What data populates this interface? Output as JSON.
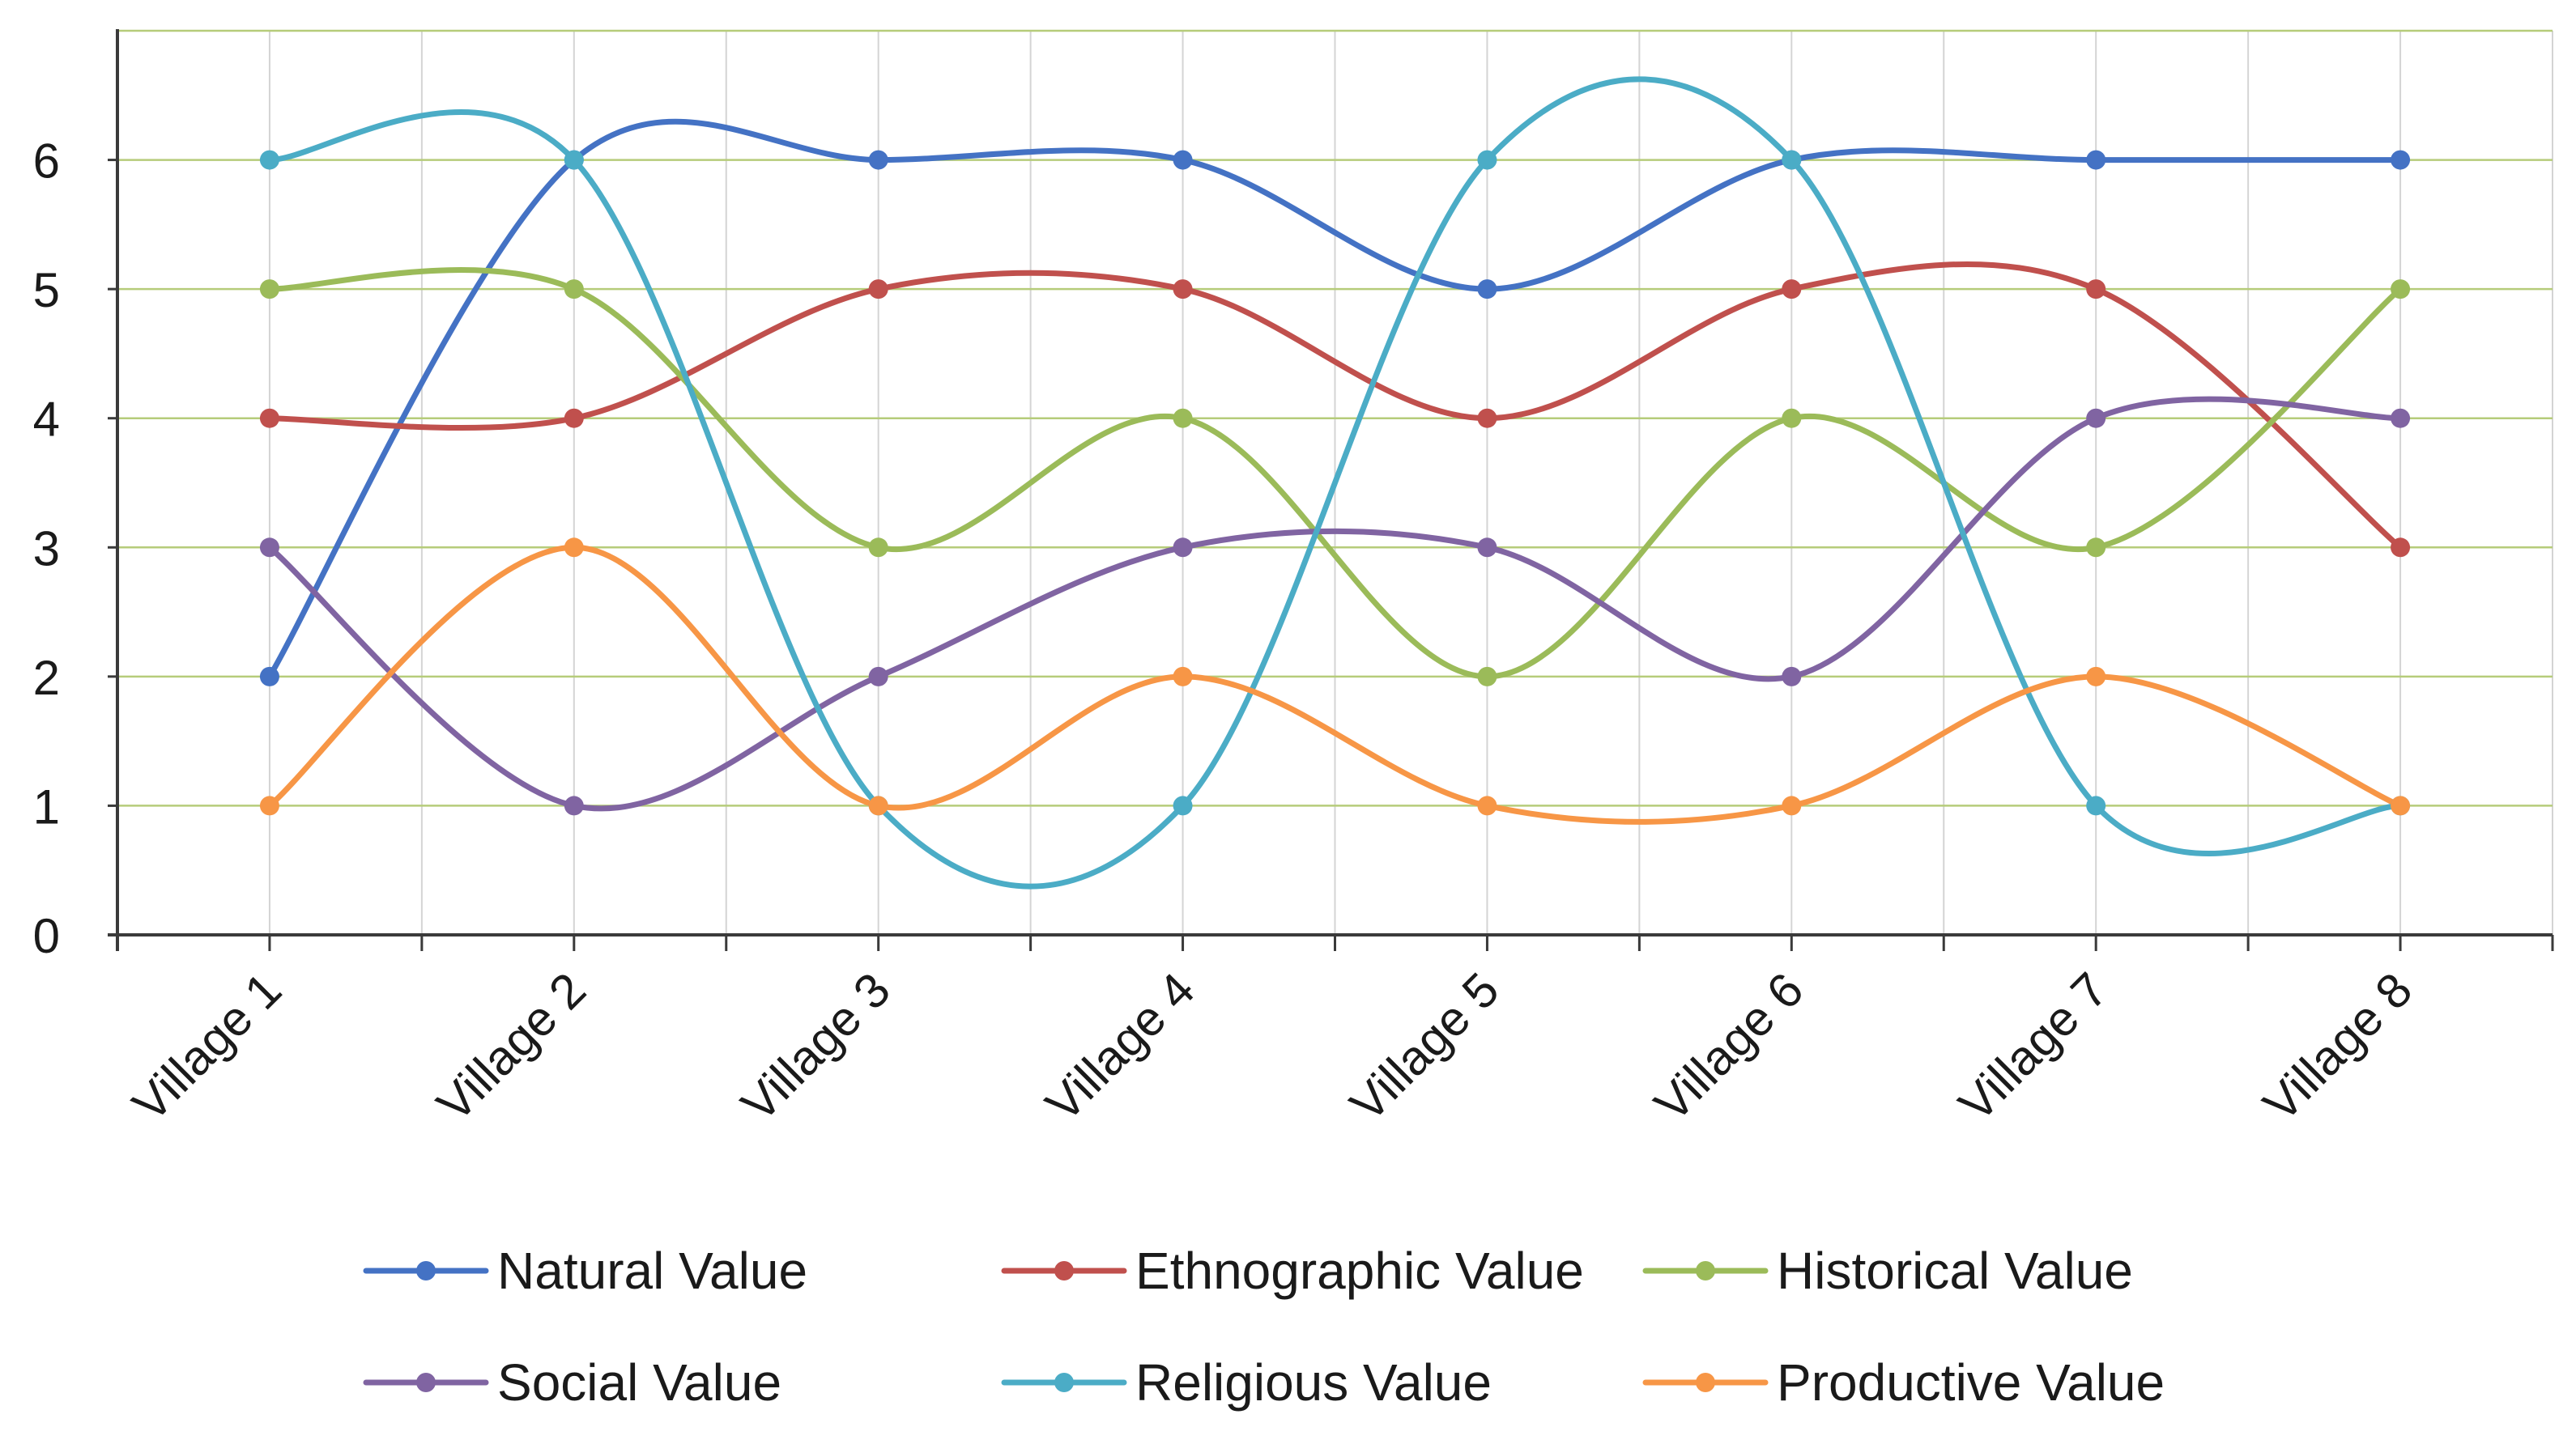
{
  "chart_data": {
    "type": "line",
    "smooth": true,
    "title": "",
    "xlabel": "",
    "ylabel": "",
    "categories": [
      "Village 1",
      "Village 2",
      "Village 3",
      "Village 4",
      "Village 5",
      "Village 6",
      "Village 7",
      "Village 8"
    ],
    "yticks": [
      "0",
      "1",
      "2",
      "3",
      "4",
      "5",
      "6"
    ],
    "ylim": [
      0,
      7
    ],
    "grid": true,
    "legend_position": "bottom",
    "series": [
      {
        "name": "Natural Value",
        "color": "#4472c4",
        "values": [
          2,
          6,
          6,
          6,
          5,
          6,
          6,
          6
        ]
      },
      {
        "name": "Ethnographic Value",
        "color": "#c0504d",
        "values": [
          4,
          4,
          5,
          5,
          4,
          5,
          5,
          3
        ]
      },
      {
        "name": "Historical Value",
        "color": "#9bbb59",
        "values": [
          5,
          5,
          3,
          4,
          2,
          4,
          3,
          5
        ]
      },
      {
        "name": "Social Value",
        "color": "#8064a2",
        "values": [
          3,
          1,
          2,
          3,
          3,
          2,
          4,
          4
        ]
      },
      {
        "name": "Religious Value",
        "color": "#4bacc6",
        "values": [
          6,
          6,
          1,
          1,
          6,
          6,
          1,
          1
        ]
      },
      {
        "name": "Productive Value",
        "color": "#f79646",
        "values": [
          1,
          3,
          1,
          2,
          1,
          1,
          2,
          1
        ]
      }
    ]
  }
}
